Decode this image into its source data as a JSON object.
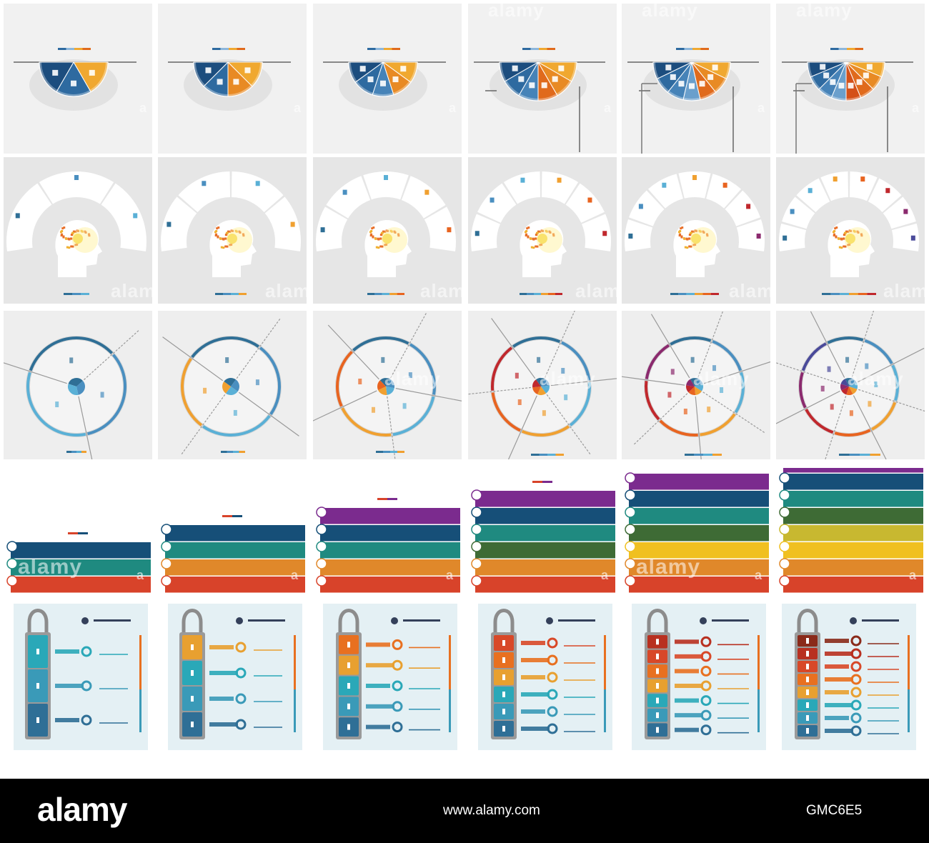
{
  "watermark": {
    "text": "alamy",
    "letter": "a"
  },
  "footer": {
    "logo": "alamy",
    "website": "www.alamy.com",
    "image_id": "GMC6E5"
  },
  "rows": {
    "semicircle": {
      "counts": [
        3,
        4,
        5,
        6,
        7,
        8
      ]
    },
    "head": {
      "counts": [
        3,
        4,
        5,
        6,
        7,
        8
      ]
    },
    "ring": {
      "counts": [
        3,
        4,
        5,
        6,
        7,
        8
      ]
    },
    "bars": {
      "counts": [
        3,
        4,
        5,
        6,
        7,
        8
      ]
    },
    "lock": {
      "counts": [
        3,
        4,
        5,
        6,
        7,
        8
      ]
    }
  },
  "palette": {
    "ring": [
      "#2f6f96",
      "#4a8fc0",
      "#5ab0d6",
      "#f0a030",
      "#e86420",
      "#c0282d",
      "#8b2a6e",
      "#4a4a9a"
    ],
    "bars_by_count": {
      "3": [
        "#d8432a",
        "#1f8a80",
        "#164f78"
      ],
      "4": [
        "#d8432a",
        "#e0882a",
        "#1f8a80",
        "#164f78"
      ],
      "5": [
        "#d8432a",
        "#e0882a",
        "#1f8a80",
        "#164f78",
        "#7b2b8e"
      ],
      "6": [
        "#d8432a",
        "#e0882a",
        "#3e6b35",
        "#1f8a80",
        "#164f78",
        "#7b2b8e"
      ],
      "7": [
        "#d8432a",
        "#e0882a",
        "#f0c020",
        "#3e6b35",
        "#1f8a80",
        "#164f78",
        "#7b2b8e"
      ],
      "8": [
        "#d8432a",
        "#e0882a",
        "#f0c020",
        "#c8b830",
        "#3e6b35",
        "#1f8a80",
        "#164f78",
        "#7b2b8e"
      ]
    },
    "lock": [
      "#2f6f96",
      "#3a9ab8",
      "#2aa8b8",
      "#e8a030",
      "#e87020",
      "#d84828",
      "#b83020",
      "#8a2a1a"
    ]
  }
}
